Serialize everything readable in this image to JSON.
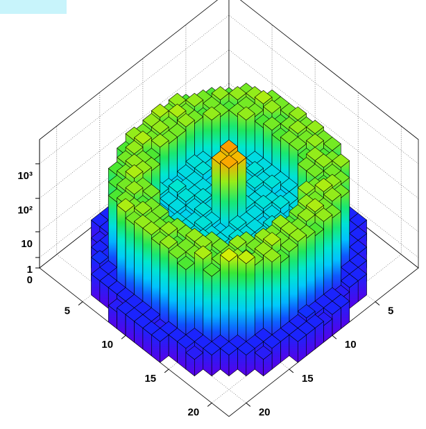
{
  "chart_data": {
    "type": "lego",
    "xlim": [
      0,
      22
    ],
    "ylim": [
      0,
      22
    ],
    "xticks": [
      5,
      10,
      15,
      20
    ],
    "yticks": [
      5,
      10,
      15,
      20
    ],
    "zlim": [
      0,
      5000
    ],
    "zscale": "log1p",
    "zticks": [
      0,
      1,
      10,
      {
        "value": 100,
        "label": "10²"
      },
      {
        "value": 1000,
        "label": "10³"
      }
    ],
    "grid": true,
    "z": [
      [
        0,
        0,
        0,
        0,
        0,
        0,
        0,
        0,
        3,
        2,
        3,
        3,
        2,
        3,
        0,
        0,
        0,
        0,
        0,
        0,
        0,
        0
      ],
      [
        0,
        0,
        0,
        0,
        0,
        3,
        2,
        3,
        3,
        4,
        3,
        3,
        3,
        3,
        2,
        3,
        3,
        0,
        0,
        0,
        0,
        0
      ],
      [
        0,
        0,
        0,
        0,
        3,
        3,
        4,
        300,
        500,
        400,
        600,
        500,
        400,
        500,
        300,
        3,
        3,
        2,
        0,
        0,
        0,
        0
      ],
      [
        0,
        0,
        0,
        3,
        2,
        300,
        400,
        500,
        400,
        600,
        400,
        500,
        400,
        600,
        500,
        400,
        300,
        3,
        3,
        0,
        0,
        0
      ],
      [
        0,
        0,
        3,
        3,
        300,
        500,
        400,
        300,
        400,
        500,
        400,
        400,
        500,
        300,
        400,
        500,
        400,
        300,
        3,
        4,
        0,
        0
      ],
      [
        0,
        3,
        3,
        400,
        500,
        300,
        400,
        500,
        40,
        50,
        40,
        30,
        40,
        50,
        400,
        500,
        600,
        400,
        300,
        3,
        3,
        0
      ],
      [
        0,
        3,
        2,
        500,
        400,
        400,
        40,
        30,
        40,
        50,
        40,
        40,
        60,
        40,
        30,
        40,
        400,
        500,
        400,
        3,
        3,
        0
      ],
      [
        0,
        3,
        400,
        600,
        400,
        500,
        40,
        50,
        40,
        30,
        40,
        40,
        50,
        40,
        30,
        40,
        400,
        300,
        400,
        600,
        3,
        0
      ],
      [
        3,
        3,
        400,
        500,
        300,
        40,
        30,
        40,
        50,
        40,
        40,
        50,
        40,
        30,
        40,
        50,
        40,
        400,
        500,
        400,
        3,
        2
      ],
      [
        3,
        2,
        400,
        300,
        400,
        40,
        50,
        40,
        30,
        40,
        60,
        40,
        50,
        40,
        40,
        30,
        40,
        400,
        400,
        500,
        3,
        3
      ],
      [
        3,
        3,
        500,
        400,
        300,
        40,
        40,
        50,
        40,
        30,
        2000,
        1500,
        40,
        50,
        40,
        40,
        30,
        300,
        400,
        500,
        3,
        3
      ],
      [
        3,
        3,
        400,
        500,
        400,
        40,
        50,
        40,
        40,
        50,
        1500,
        1800,
        30,
        40,
        50,
        40,
        40,
        400,
        500,
        400,
        3,
        3
      ],
      [
        3,
        3,
        500,
        400,
        400,
        40,
        30,
        40,
        50,
        40,
        40,
        50,
        40,
        40,
        30,
        40,
        50,
        400,
        300,
        500,
        2,
        3
      ],
      [
        3,
        3,
        400,
        500,
        300,
        40,
        40,
        50,
        40,
        30,
        40,
        40,
        50,
        40,
        40,
        50,
        40,
        500,
        400,
        400,
        3,
        3
      ],
      [
        0,
        3,
        400,
        300,
        500,
        400,
        40,
        30,
        40,
        50,
        40,
        40,
        30,
        40,
        50,
        40,
        400,
        500,
        400,
        300,
        3,
        0
      ],
      [
        0,
        3,
        3,
        400,
        500,
        400,
        40,
        50,
        40,
        40,
        30,
        40,
        50,
        40,
        40,
        40,
        400,
        300,
        600,
        3,
        3,
        0
      ],
      [
        0,
        3,
        3,
        500,
        400,
        300,
        400,
        500,
        40,
        40,
        50,
        40,
        40,
        30,
        400,
        500,
        400,
        400,
        300,
        3,
        2,
        0
      ],
      [
        0,
        0,
        3,
        3,
        400,
        500,
        600,
        400,
        500,
        400,
        300,
        500,
        400,
        500,
        400,
        300,
        500,
        800,
        3,
        3,
        0,
        0
      ],
      [
        0,
        0,
        0,
        3,
        3,
        400,
        500,
        400,
        600,
        500,
        400,
        500,
        400,
        600,
        500,
        400,
        700,
        3,
        3,
        0,
        0,
        0
      ],
      [
        0,
        0,
        0,
        0,
        3,
        3,
        3,
        400,
        500,
        300,
        400,
        500,
        400,
        300,
        500,
        3,
        3,
        3,
        0,
        0,
        0,
        0
      ],
      [
        0,
        0,
        0,
        0,
        0,
        3,
        3,
        2,
        3,
        3,
        3,
        4,
        3,
        3,
        3,
        3,
        2,
        0,
        0,
        0,
        0,
        0
      ],
      [
        0,
        0,
        0,
        0,
        0,
        0,
        0,
        0,
        3,
        3,
        2,
        3,
        3,
        3,
        0,
        0,
        0,
        0,
        0,
        0,
        0,
        0
      ]
    ]
  }
}
